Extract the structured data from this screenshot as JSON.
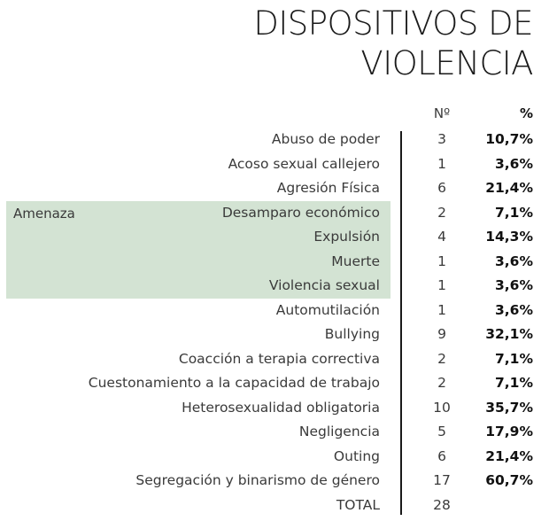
{
  "title": {
    "line1": "DISPOSITIVOS DE",
    "line2": "VIOLENCIA"
  },
  "columns": {
    "count": "Nº",
    "percent": "%"
  },
  "group_label": "Amenaza",
  "rows": [
    {
      "label": "Abuso de poder",
      "count": "3",
      "percent": "10,7%"
    },
    {
      "label": "Acoso sexual callejero",
      "count": "1",
      "percent": "3,6%"
    },
    {
      "label": "Agresión Física",
      "count": "6",
      "percent": "21,4%"
    },
    {
      "label": "Desamparo económico",
      "count": "2",
      "percent": "7,1%"
    },
    {
      "label": "Expulsión",
      "count": "4",
      "percent": "14,3%"
    },
    {
      "label": "Muerte",
      "count": "1",
      "percent": "3,6%"
    },
    {
      "label": "Violencia sexual",
      "count": "1",
      "percent": "3,6%"
    },
    {
      "label": "Automutilación",
      "count": "1",
      "percent": "3,6%"
    },
    {
      "label": "Bullying",
      "count": "9",
      "percent": "32,1%"
    },
    {
      "label": "Coacción a terapia correctiva",
      "count": "2",
      "percent": "7,1%"
    },
    {
      "label": "Cuestonamiento a la capacidad de trabajo",
      "count": "2",
      "percent": "7,1%"
    },
    {
      "label": "Heterosexualidad obligatoria",
      "count": "10",
      "percent": "35,7%"
    },
    {
      "label": "Negligencia",
      "count": "5",
      "percent": "17,9%"
    },
    {
      "label": "Outing",
      "count": "6",
      "percent": "21,4%"
    },
    {
      "label": "Segregación y binarismo de género",
      "count": "17",
      "percent": "60,7%"
    }
  ],
  "total": {
    "label": "TOTAL",
    "count": "28"
  }
}
